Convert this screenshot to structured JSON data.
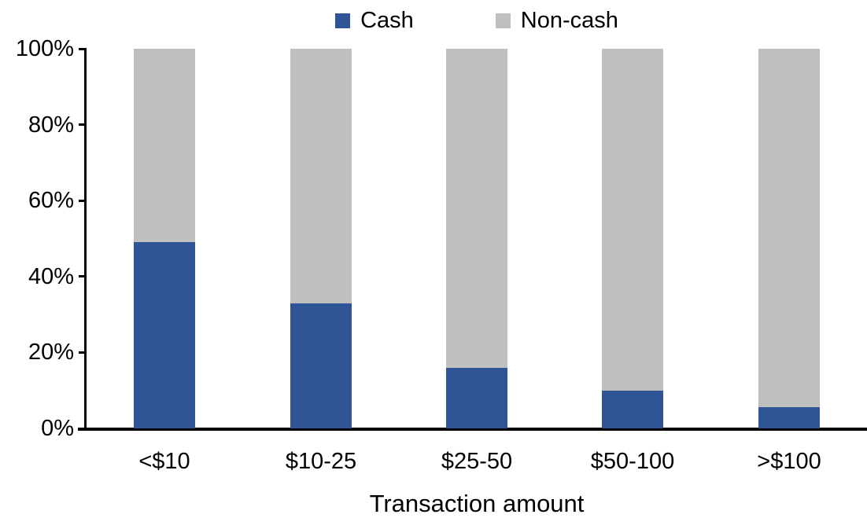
{
  "chart_data": {
    "type": "bar",
    "stacked": true,
    "percent_stacked": true,
    "title": "",
    "xlabel": "Transaction amount",
    "ylabel": "",
    "categories": [
      "<$10",
      "$10-25",
      "$25-50",
      "$50-100",
      ">$100"
    ],
    "series": [
      {
        "name": "Cash",
        "color": "#2F5596",
        "values": [
          49,
          33,
          16,
          10,
          5.5
        ]
      },
      {
        "name": "Non-cash",
        "color": "#BFBFBF",
        "values": [
          51,
          67,
          84,
          90,
          94.5
        ]
      }
    ],
    "ylim": [
      0,
      100
    ],
    "yticks": [
      0,
      20,
      40,
      60,
      80,
      100
    ],
    "ytick_suffix": "%",
    "grid": false,
    "legend_position": "top"
  },
  "colors": {
    "axis": "#000000",
    "text": "#000000",
    "background": "#FFFFFF"
  }
}
